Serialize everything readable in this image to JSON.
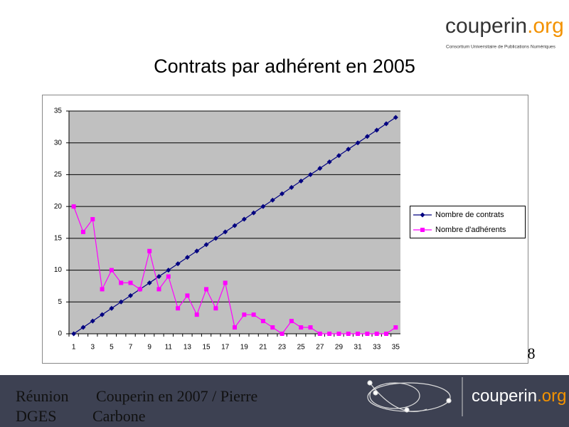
{
  "slide": {
    "logo_name": "couperin",
    "logo_suffix": ".org",
    "logo_tagline": "Consortium Universitaire de Publications Numériques",
    "page_number": "8",
    "footer_left_1": "Réunion",
    "footer_left_2": "DGES",
    "footer_right_1": "Couperin en 2007 / Pierre",
    "footer_right_2": "Carbone",
    "footer_logo_name": "couperin",
    "footer_logo_suffix": ".org"
  },
  "chart_data": {
    "type": "line",
    "title": "Contrats par adhérent en 2005",
    "categories": [
      1,
      null,
      3,
      null,
      5,
      null,
      7,
      null,
      9,
      null,
      11,
      null,
      13,
      null,
      15,
      null,
      17,
      null,
      19,
      null,
      21,
      null,
      23,
      null,
      25,
      null,
      27,
      null,
      29,
      null,
      31,
      null,
      33,
      null,
      35
    ],
    "series": [
      {
        "name": "Nombre de contrats",
        "color": "#000080",
        "marker": "diamond",
        "values": [
          0,
          1,
          2,
          3,
          4,
          5,
          6,
          7,
          8,
          9,
          10,
          11,
          12,
          13,
          14,
          15,
          16,
          17,
          18,
          19,
          20,
          21,
          22,
          23,
          24,
          25,
          26,
          27,
          28,
          29,
          30,
          31,
          32,
          33,
          34
        ]
      },
      {
        "name": "Nombre d'adhérents",
        "color": "#ff00ff",
        "marker": "square",
        "values": [
          20,
          16,
          18,
          7,
          10,
          8,
          8,
          7,
          13,
          7,
          9,
          4,
          6,
          3,
          7,
          4,
          8,
          1,
          3,
          3,
          2,
          1,
          0,
          2,
          1,
          1,
          0,
          0,
          0,
          0,
          0,
          0,
          0,
          0,
          1
        ]
      }
    ],
    "ylim": [
      0,
      35
    ],
    "yticks": [
      0,
      5,
      10,
      15,
      20,
      25,
      30,
      35
    ],
    "grid": true,
    "legend": "right"
  }
}
